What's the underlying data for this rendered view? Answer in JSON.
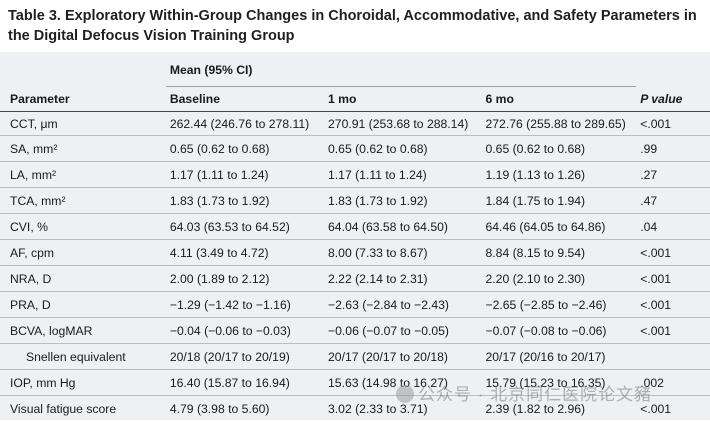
{
  "title": "Table 3. Exploratory Within-Group Changes in Choroidal, Accommodative, and Safety Parameters in the Digital Defocus Vision Training Group",
  "header": {
    "group": "Mean (95% CI)",
    "columns": [
      "Parameter",
      "Baseline",
      "1 mo",
      "6 mo",
      "P value"
    ]
  },
  "rows": [
    {
      "param": "CCT, μm",
      "baseline": "262.44 (246.76 to 278.11)",
      "m1": "270.91 (253.68 to 288.14)",
      "m6": "272.76 (255.88 to 289.65)",
      "p": "<.001"
    },
    {
      "param": "SA, mm²",
      "baseline": "0.65 (0.62 to 0.68)",
      "m1": "0.65 (0.62 to 0.68)",
      "m6": "0.65 (0.62 to 0.68)",
      "p": ".99"
    },
    {
      "param": "LA, mm²",
      "baseline": "1.17 (1.11 to 1.24)",
      "m1": "1.17 (1.11 to 1.24)",
      "m6": "1.19 (1.13 to 1.26)",
      "p": ".27"
    },
    {
      "param": "TCA, mm²",
      "baseline": "1.83 (1.73 to 1.92)",
      "m1": "1.83 (1.73 to 1.92)",
      "m6": "1.84 (1.75 to 1.94)",
      "p": ".47"
    },
    {
      "param": "CVI, %",
      "baseline": "64.03 (63.53 to 64.52)",
      "m1": "64.04 (63.58 to 64.50)",
      "m6": "64.46 (64.05 to 64.86)",
      "p": ".04"
    },
    {
      "param": "AF, cpm",
      "baseline": "4.11 (3.49 to 4.72)",
      "m1": "8.00 (7.33 to 8.67)",
      "m6": "8.84 (8.15 to 9.54)",
      "p": "<.001"
    },
    {
      "param": "NRA, D",
      "baseline": "2.00 (1.89 to 2.12)",
      "m1": "2.22 (2.14 to 2.31)",
      "m6": "2.20 (2.10 to 2.30)",
      "p": "<.001"
    },
    {
      "param": "PRA, D",
      "baseline": "−1.29 (−1.42 to −1.16)",
      "m1": "−2.63 (−2.84 to −2.43)",
      "m6": "−2.65 (−2.85 to −2.46)",
      "p": "<.001"
    },
    {
      "param": "BCVA, logMAR",
      "baseline": "−0.04 (−0.06 to −0.03)",
      "m1": "−0.06 (−0.07 to −0.05)",
      "m6": "−0.07 (−0.08 to −0.06)",
      "p": "<.001"
    },
    {
      "param": "Snellen equivalent",
      "baseline": "20/18 (20/17 to 20/19)",
      "m1": "20/17 (20/17 to 20/18)",
      "m6": "20/17 (20/16 to 20/17)",
      "p": ""
    },
    {
      "param": "IOP, mm Hg",
      "baseline": "16.40 (15.87 to 16.94)",
      "m1": "15.63 (14.98 to 16.27)",
      "m6": "15.79 (15.23 to 16.35)",
      "p": ".002"
    },
    {
      "param": "Visual fatigue score",
      "baseline": "4.79 (3.98 to 5.60)",
      "m1": "3.02 (2.33 to 3.71)",
      "m6": "2.39 (1.82 to 2.96)",
      "p": "<.001"
    }
  ],
  "watermark": "公众号 · 北京同仁医院论文豬"
}
